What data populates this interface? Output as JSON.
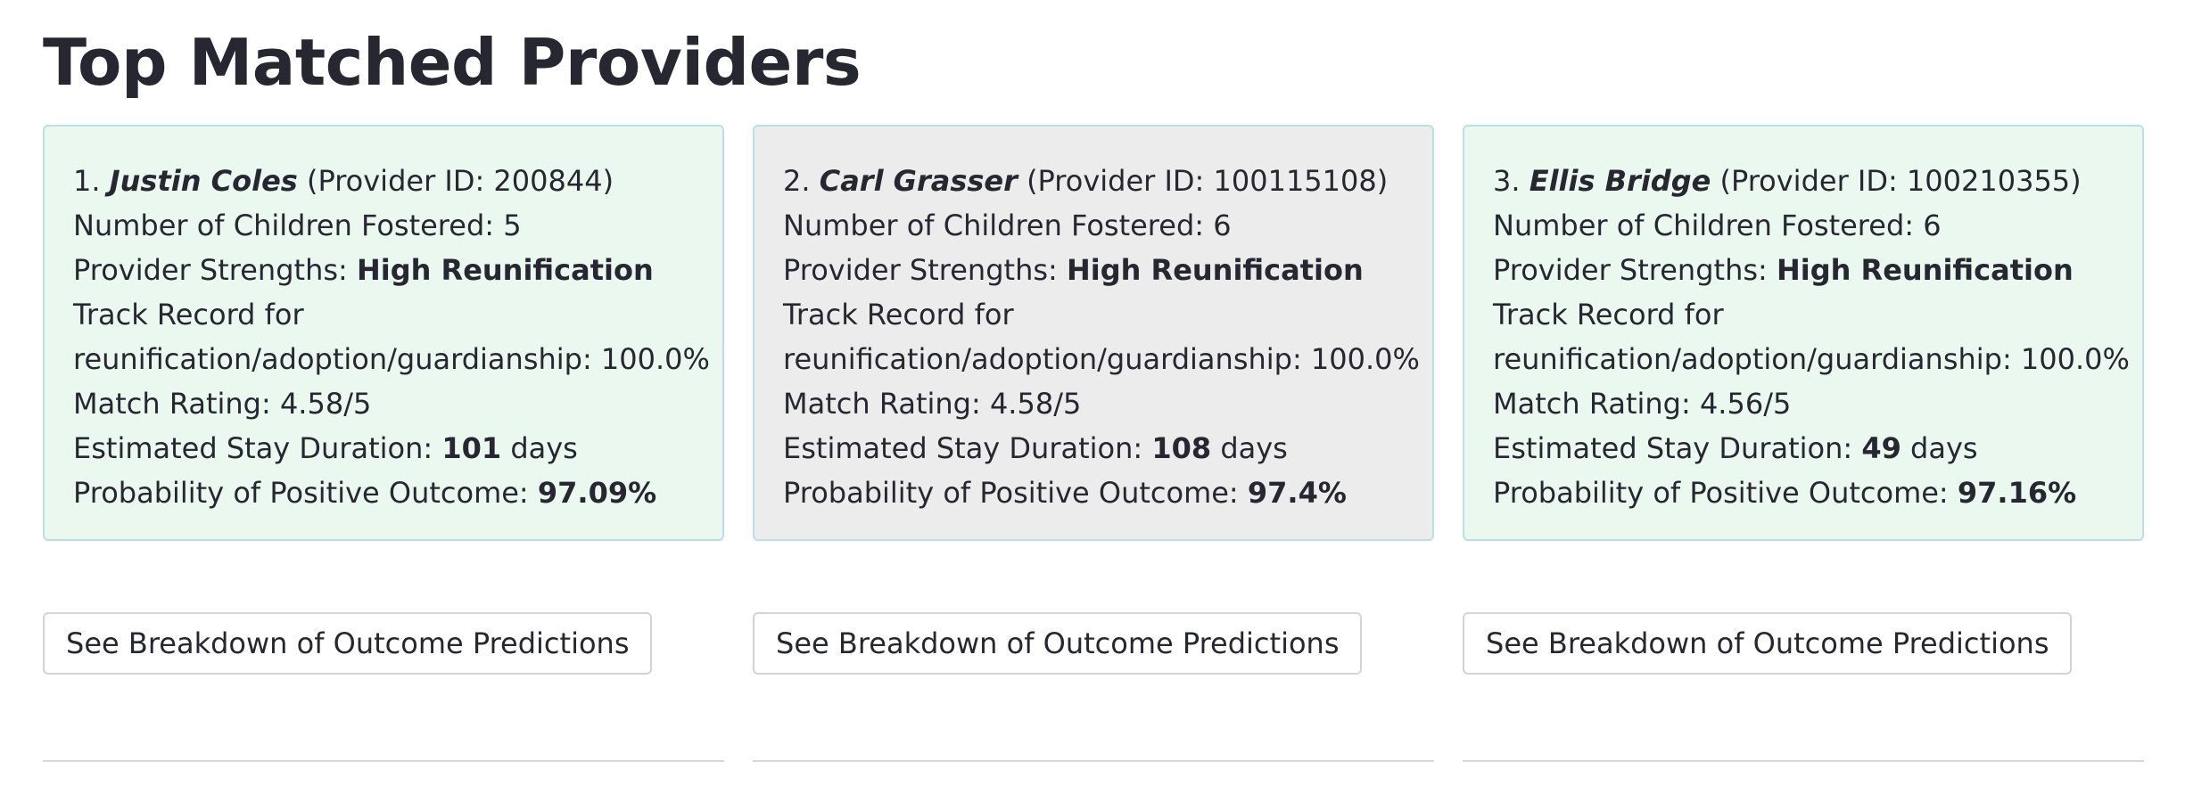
{
  "page": {
    "title": "Top Matched Providers"
  },
  "labels": {
    "provider_id_prefix": "(Provider ID: ",
    "provider_id_suffix": ")",
    "children_fostered": "Number of Children Fostered: ",
    "strengths": "Provider Strengths: ",
    "track_record_line1": "Track Record for",
    "track_record_line2": "reunification/adoption/guardianship: ",
    "match_rating": "Match Rating: ",
    "stay_duration": "Estimated Stay Duration: ",
    "stay_unit": " days",
    "probability": "Probability of Positive Outcome: "
  },
  "providers": [
    {
      "rank": "1.",
      "name": "Justin Coles",
      "provider_id": "200844",
      "children_fostered": "5",
      "strength": "High Reunification",
      "track_record": "100.0%",
      "match_rating": "4.58/5",
      "stay_days": "101",
      "probability": "97.09%",
      "card_color": "#ebf8f0",
      "button_label": "See Breakdown of Outcome Predictions"
    },
    {
      "rank": "2.",
      "name": "Carl Grasser",
      "provider_id": "100115108",
      "children_fostered": "6",
      "strength": "High Reunification",
      "track_record": "100.0%",
      "match_rating": "4.58/5",
      "stay_days": "108",
      "probability": "97.4%",
      "card_color": "#ececec",
      "button_label": "See Breakdown of Outcome Predictions"
    },
    {
      "rank": "3.",
      "name": "Ellis Bridge",
      "provider_id": "100210355",
      "children_fostered": "6",
      "strength": "High Reunification",
      "track_record": "100.0%",
      "match_rating": "4.56/5",
      "stay_days": "49",
      "probability": "97.16%",
      "card_color": "#ebf8f0",
      "button_label": "See Breakdown of Outcome Predictions"
    }
  ],
  "colors": {
    "card_border": "#b9e0e6",
    "text": "#262730",
    "button_border": "#d3d4d8",
    "divider": "#d7d7dc"
  }
}
